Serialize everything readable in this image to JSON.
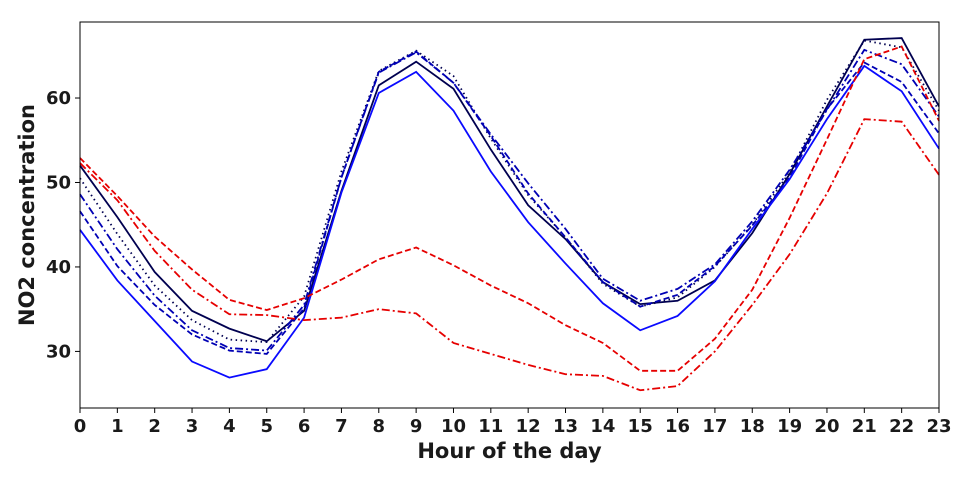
{
  "chart_data": {
    "type": "line",
    "xlabel": "Hour of the day",
    "ylabel": "NO2 concentration",
    "title": "",
    "xlim": [
      0,
      23
    ],
    "ylim": [
      23.3,
      69.0
    ],
    "grid": false,
    "x": [
      0,
      1,
      2,
      3,
      4,
      5,
      6,
      7,
      8,
      9,
      10,
      11,
      12,
      13,
      14,
      15,
      16,
      17,
      18,
      19,
      20,
      21,
      22,
      23
    ],
    "xticks": [
      "0",
      "1",
      "2",
      "3",
      "4",
      "5",
      "6",
      "7",
      "8",
      "9",
      "10",
      "11",
      "12",
      "13",
      "14",
      "15",
      "16",
      "17",
      "18",
      "19",
      "20",
      "21",
      "22",
      "23"
    ],
    "yticks": [
      30,
      40,
      50,
      60
    ],
    "series": [
      {
        "color": "#000050",
        "dash": "solid",
        "values": [
          52.0,
          45.9,
          39.4,
          34.8,
          32.7,
          31.2,
          34.8,
          49.0,
          61.5,
          64.3,
          61.1,
          53.9,
          47.3,
          43.3,
          38.2,
          35.6,
          36.0,
          38.4,
          44.0,
          51.0,
          59.0,
          66.9,
          67.1,
          59.0
        ]
      },
      {
        "color": "#000050",
        "dash": "dotted",
        "values": [
          50.5,
          43.9,
          37.8,
          33.7,
          31.4,
          31.1,
          36.5,
          51.3,
          63.2,
          65.6,
          62.6,
          55.2,
          48.5,
          43.5,
          38.0,
          35.3,
          36.4,
          40.0,
          45.0,
          51.2,
          59.8,
          66.8,
          66.0,
          58.5
        ]
      },
      {
        "color": "#0000b4",
        "dash": "dashdot",
        "values": [
          48.6,
          42.1,
          36.6,
          32.5,
          30.4,
          30.1,
          35.5,
          50.6,
          63.0,
          65.4,
          61.8,
          55.7,
          49.9,
          44.5,
          38.6,
          36.0,
          37.4,
          40.3,
          45.4,
          51.5,
          58.6,
          65.7,
          64.0,
          57.8
        ]
      },
      {
        "color": "#0000b4",
        "dash": "dashed",
        "values": [
          46.6,
          40.1,
          35.5,
          32.0,
          30.1,
          29.7,
          35.1,
          50.6,
          63.1,
          65.5,
          61.8,
          55.5,
          48.7,
          43.5,
          38.2,
          35.3,
          36.7,
          40.1,
          44.9,
          50.6,
          58.7,
          64.2,
          61.9,
          55.8
        ]
      },
      {
        "color": "#0a0aff",
        "dash": "solid",
        "values": [
          44.4,
          38.4,
          33.6,
          28.8,
          26.9,
          27.9,
          34.0,
          48.8,
          60.6,
          63.1,
          58.5,
          51.3,
          45.3,
          40.4,
          35.7,
          32.5,
          34.2,
          38.3,
          44.5,
          50.4,
          57.5,
          63.8,
          60.8,
          54.0
        ]
      },
      {
        "color": "#e60000",
        "dash": "dashed",
        "values": [
          52.9,
          48.4,
          43.6,
          39.7,
          36.1,
          34.9,
          36.3,
          38.5,
          40.9,
          42.3,
          40.2,
          37.8,
          35.7,
          33.1,
          31.0,
          27.7,
          27.7,
          31.5,
          37.3,
          45.8,
          55.1,
          64.6,
          66.1,
          57.3
        ]
      },
      {
        "color": "#e60000",
        "dashdot": true,
        "dash": "dashdot",
        "values": [
          52.3,
          47.9,
          41.9,
          37.3,
          34.4,
          34.3,
          33.7,
          34.0,
          35.0,
          34.5,
          31.0,
          29.7,
          28.4,
          27.3,
          27.1,
          25.4,
          25.9,
          30.0,
          35.5,
          41.5,
          48.7,
          57.5,
          57.2,
          50.9
        ]
      }
    ]
  }
}
